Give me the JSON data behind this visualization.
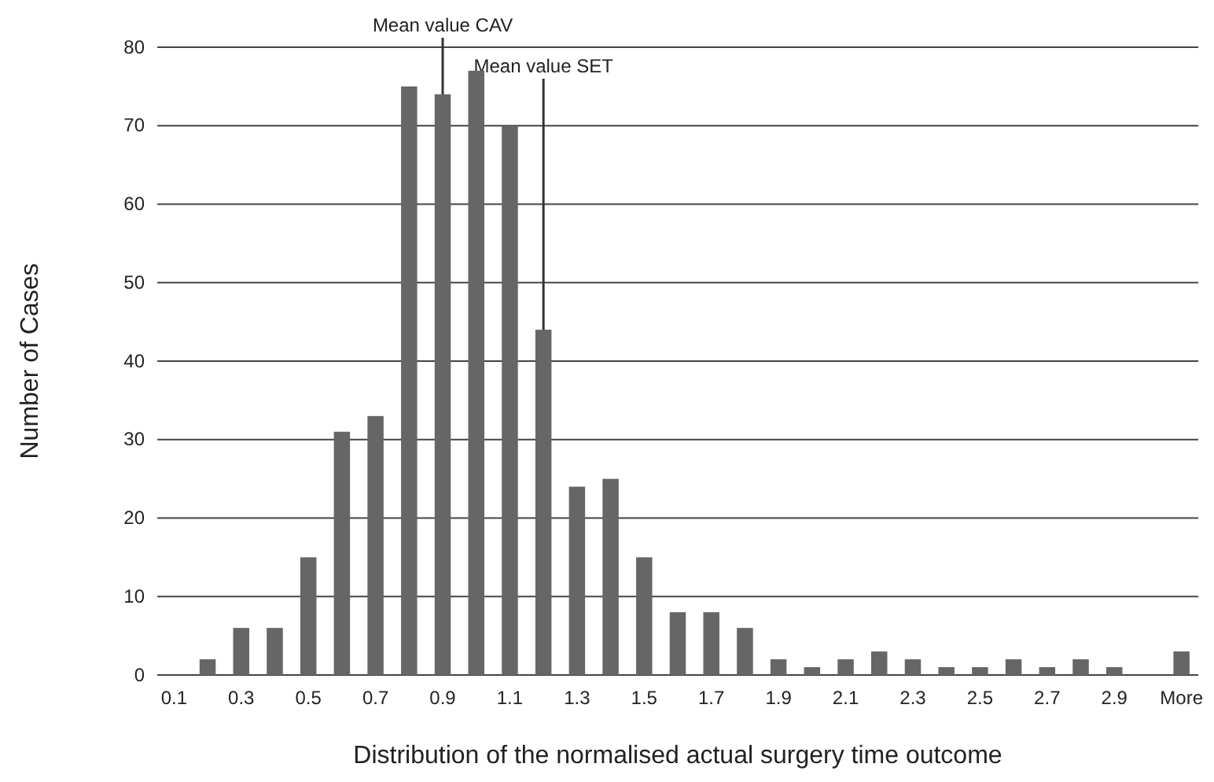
{
  "chart_data": {
    "type": "bar",
    "x": [
      0.1,
      0.2,
      0.3,
      0.4,
      0.5,
      0.6,
      0.7,
      0.8,
      0.9,
      1.0,
      1.1,
      1.2,
      1.3,
      1.4,
      1.5,
      1.6,
      1.7,
      1.8,
      1.9,
      2.0,
      2.1,
      2.2,
      2.3,
      2.4,
      2.5,
      2.6,
      2.7,
      2.8,
      2.9,
      3.0,
      3.1
    ],
    "values": [
      0,
      2,
      6,
      6,
      15,
      31,
      33,
      75,
      74,
      77,
      70,
      44,
      24,
      25,
      15,
      8,
      8,
      6,
      2,
      1,
      2,
      3,
      2,
      1,
      1,
      2,
      1,
      2,
      1,
      0,
      3
    ],
    "color": "#666666",
    "xlim": [
      0.05,
      3.15
    ],
    "xticks": [
      0.1,
      0.3,
      0.5,
      0.7,
      0.9,
      1.1,
      1.3,
      1.5,
      1.7,
      1.9,
      2.1,
      2.3,
      2.5,
      2.7,
      2.9,
      {
        "value": 3.1,
        "label": "More"
      }
    ],
    "ylim": [
      0,
      80
    ],
    "yticks": [
      0,
      10,
      20,
      30,
      40,
      50,
      60,
      70,
      80
    ],
    "grid": "y",
    "xlabel": "Distribution of the normalised actual surgery time outcome",
    "ylabel": "Number of Cases",
    "ref_lines": [
      {
        "axis": "x",
        "value": 0.9,
        "label": "Mean value CAV",
        "color": "#333333"
      },
      {
        "axis": "x",
        "value": 1.2,
        "label": "Mean value SET",
        "color": "#333333"
      }
    ]
  }
}
